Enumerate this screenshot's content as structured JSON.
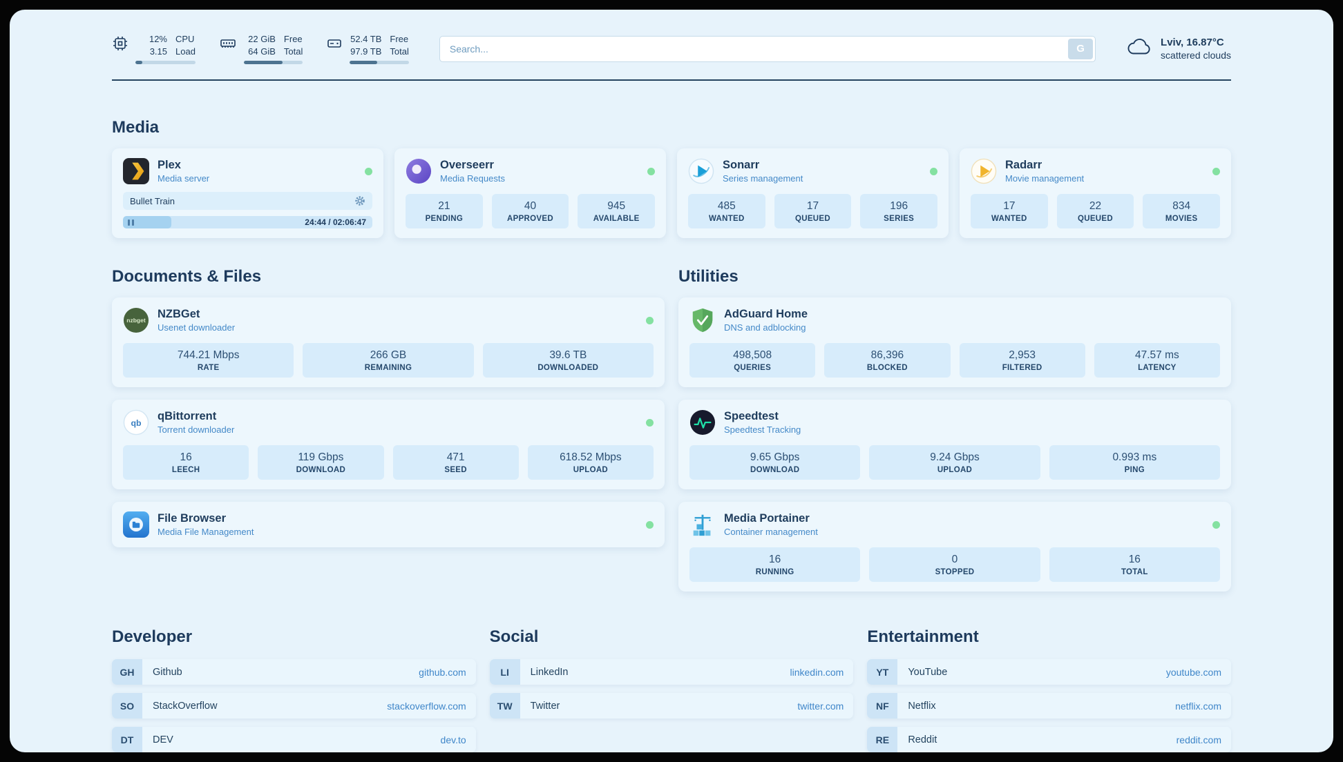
{
  "theme": {
    "background": "#e7f3fb",
    "card": "#edf7fd",
    "stat_box": "#d7ecfb",
    "text_primary": "#1d3a5c",
    "text_accent": "#4489c8",
    "status_online": "#84e1a1"
  },
  "header": {
    "cpu": {
      "icon": "cpu-chip-icon",
      "line1": "12%",
      "line2": "3.15",
      "label1": "CPU",
      "label2": "Load",
      "progress": 12
    },
    "ram": {
      "icon": "ram-icon",
      "line1": "22 GiB",
      "line2": "64 GiB",
      "label1": "Free",
      "label2": "Total",
      "progress": 66
    },
    "disk": {
      "icon": "disk-icon",
      "line1": "52.4 TB",
      "line2": "97.9 TB",
      "label1": "Free",
      "label2": "Total",
      "progress": 46
    },
    "search": {
      "placeholder": "Search...",
      "button_label": "G"
    },
    "weather": {
      "icon": "cloud-icon",
      "location": "Lviv, 16.87°C",
      "condition": "scattered clouds"
    }
  },
  "media": {
    "title": "Media",
    "plex": {
      "name": "Plex",
      "subtitle": "Media server",
      "status": "online",
      "now_playing": "Bullet Train",
      "time": "24:44 / 02:06:47",
      "progress_percent": 19.5
    },
    "overseerr": {
      "name": "Overseerr",
      "subtitle": "Media Requests",
      "status": "online",
      "stats": [
        {
          "value": "21",
          "label": "PENDING"
        },
        {
          "value": "40",
          "label": "APPROVED"
        },
        {
          "value": "945",
          "label": "AVAILABLE"
        }
      ]
    },
    "sonarr": {
      "name": "Sonarr",
      "subtitle": "Series management",
      "status": "online",
      "stats": [
        {
          "value": "485",
          "label": "WANTED"
        },
        {
          "value": "17",
          "label": "QUEUED"
        },
        {
          "value": "196",
          "label": "SERIES"
        }
      ]
    },
    "radarr": {
      "name": "Radarr",
      "subtitle": "Movie management",
      "status": "online",
      "stats": [
        {
          "value": "17",
          "label": "WANTED"
        },
        {
          "value": "22",
          "label": "QUEUED"
        },
        {
          "value": "834",
          "label": "MOVIES"
        }
      ]
    }
  },
  "documents": {
    "title": "Documents & Files",
    "nzbget": {
      "name": "NZBGet",
      "subtitle": "Usenet downloader",
      "status": "online",
      "stats": [
        {
          "value": "744.21 Mbps",
          "label": "RATE"
        },
        {
          "value": "266 GB",
          "label": "REMAINING"
        },
        {
          "value": "39.6 TB",
          "label": "DOWNLOADED"
        }
      ]
    },
    "qbittorrent": {
      "name": "qBittorrent",
      "subtitle": "Torrent downloader",
      "status": "online",
      "stats": [
        {
          "value": "16",
          "label": "LEECH"
        },
        {
          "value": "119 Gbps",
          "label": "DOWNLOAD"
        },
        {
          "value": "471",
          "label": "SEED"
        },
        {
          "value": "618.52 Mbps",
          "label": "UPLOAD"
        }
      ]
    },
    "filebrowser": {
      "name": "File Browser",
      "subtitle": "Media File Management",
      "status": "online"
    }
  },
  "utilities": {
    "title": "Utilities",
    "adguard": {
      "name": "AdGuard Home",
      "subtitle": "DNS and adblocking",
      "status": "online",
      "stats": [
        {
          "value": "498,508",
          "label": "QUERIES"
        },
        {
          "value": "86,396",
          "label": "BLOCKED"
        },
        {
          "value": "2,953",
          "label": "FILTERED"
        },
        {
          "value": "47.57 ms",
          "label": "LATENCY"
        }
      ]
    },
    "speedtest": {
      "name": "Speedtest",
      "subtitle": "Speedtest Tracking",
      "status": "none",
      "stats": [
        {
          "value": "9.65 Gbps",
          "label": "DOWNLOAD"
        },
        {
          "value": "9.24 Gbps",
          "label": "UPLOAD"
        },
        {
          "value": "0.993 ms",
          "label": "PING"
        }
      ]
    },
    "portainer": {
      "name": "Media Portainer",
      "subtitle": "Container management",
      "status": "online",
      "stats": [
        {
          "value": "16",
          "label": "RUNNING"
        },
        {
          "value": "0",
          "label": "STOPPED"
        },
        {
          "value": "16",
          "label": "TOTAL"
        }
      ]
    }
  },
  "links": {
    "developer": {
      "title": "Developer",
      "items": [
        {
          "abbr": "GH",
          "name": "Github",
          "url": "github.com"
        },
        {
          "abbr": "SO",
          "name": "StackOverflow",
          "url": "stackoverflow.com"
        },
        {
          "abbr": "DT",
          "name": "DEV",
          "url": "dev.to"
        }
      ]
    },
    "social": {
      "title": "Social",
      "items": [
        {
          "abbr": "LI",
          "name": "LinkedIn",
          "url": "linkedin.com"
        },
        {
          "abbr": "TW",
          "name": "Twitter",
          "url": "twitter.com"
        }
      ]
    },
    "entertainment": {
      "title": "Entertainment",
      "items": [
        {
          "abbr": "YT",
          "name": "YouTube",
          "url": "youtube.com"
        },
        {
          "abbr": "NF",
          "name": "Netflix",
          "url": "netflix.com"
        },
        {
          "abbr": "RE",
          "name": "Reddit",
          "url": "reddit.com"
        }
      ]
    }
  }
}
